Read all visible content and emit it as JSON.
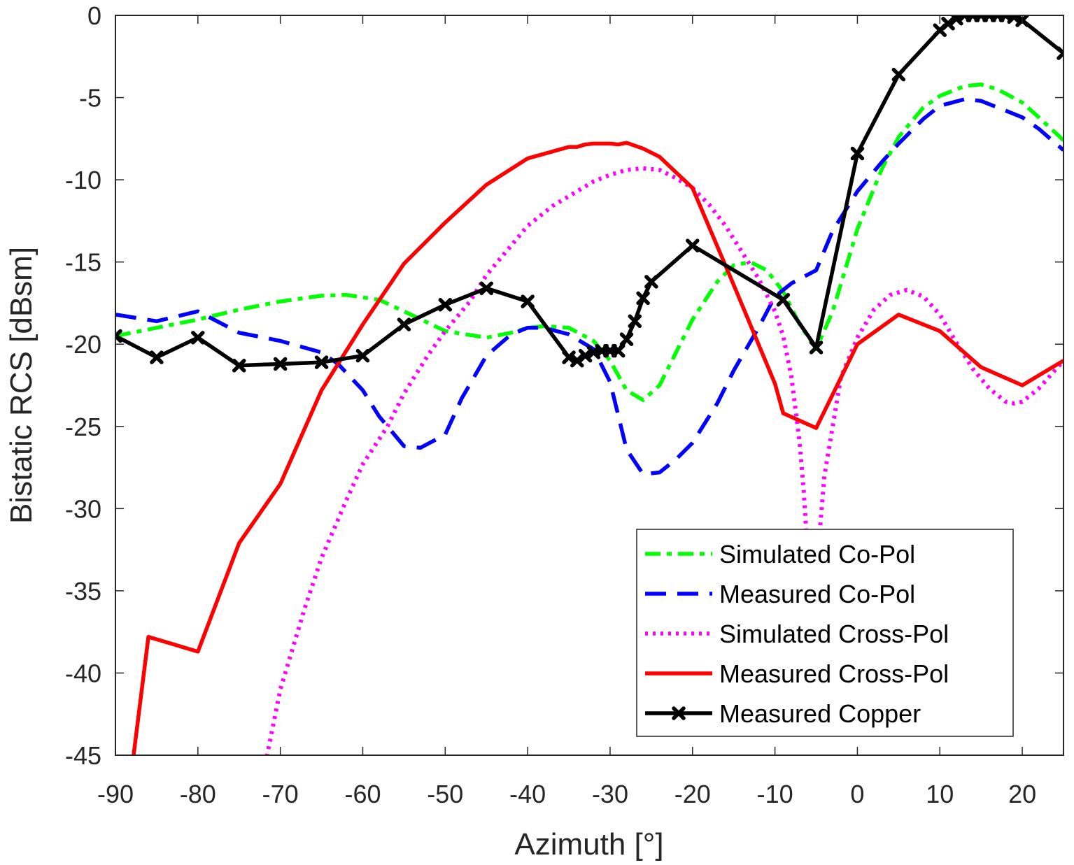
{
  "chart_data": {
    "type": "line",
    "title": "",
    "xlabel": "Azimuth [°]",
    "ylabel": "Bistatic RCS [dBsm]",
    "xlim": [
      -90,
      25
    ],
    "ylim": [
      -45,
      0
    ],
    "xticks": [
      -90,
      -80,
      -70,
      -60,
      -50,
      -40,
      -30,
      -20,
      -10,
      0,
      10,
      20
    ],
    "yticks": [
      0,
      -5,
      -10,
      -15,
      -20,
      -25,
      -30,
      -35,
      -40,
      -45
    ],
    "grid": false,
    "legend_position": "bottom-right",
    "series": [
      {
        "name": "Simulated Co-Pol",
        "color": "#00ff00",
        "dash": "dash-dot",
        "marker": "none",
        "x": [
          -90,
          -85,
          -80,
          -75,
          -70,
          -65,
          -62,
          -58,
          -55,
          -50,
          -45,
          -42,
          -40,
          -38,
          -35,
          -32,
          -30,
          -28,
          -26,
          -24,
          -22,
          -20,
          -17,
          -15,
          -13,
          -11,
          -9,
          -7,
          -5,
          -3,
          0,
          3,
          5,
          8,
          10,
          13,
          15,
          17,
          20,
          22,
          25
        ],
        "y": [
          -19.5,
          -19,
          -18.5,
          -17.9,
          -17.4,
          -17.05,
          -17,
          -17.3,
          -18,
          -19.2,
          -19.6,
          -19.3,
          -19,
          -18.9,
          -19,
          -19.8,
          -21,
          -22.8,
          -23.4,
          -22.5,
          -20.5,
          -18.5,
          -16.2,
          -15.2,
          -15,
          -15.5,
          -16.8,
          -18.8,
          -20.3,
          -18,
          -13,
          -9.3,
          -7.4,
          -5.6,
          -4.9,
          -4.3,
          -4.2,
          -4.5,
          -5.3,
          -6.2,
          -7.6
        ]
      },
      {
        "name": "Measured Co-Pol",
        "color": "#0000ff",
        "dash": "dashed",
        "marker": "none",
        "x": [
          -90,
          -85,
          -80,
          -75,
          -70,
          -65,
          -63,
          -60,
          -58,
          -55,
          -53,
          -50,
          -48,
          -45,
          -42,
          -40,
          -38,
          -35,
          -32,
          -30,
          -28,
          -26,
          -24,
          -22,
          -20,
          -17,
          -15,
          -12,
          -10,
          -8,
          -5,
          -3,
          0,
          3,
          5,
          8,
          10,
          13,
          15,
          18,
          20,
          22,
          25
        ],
        "y": [
          -18.2,
          -18.6,
          -18,
          -19.3,
          -19.8,
          -20.5,
          -21.2,
          -22.8,
          -24.4,
          -26.2,
          -26.3,
          -25.5,
          -23.3,
          -20.7,
          -19.4,
          -19,
          -19,
          -19.4,
          -20.3,
          -22.3,
          -26.4,
          -27.9,
          -27.8,
          -27,
          -26,
          -23.6,
          -21.6,
          -19,
          -17.1,
          -16.3,
          -15.5,
          -13.1,
          -10.7,
          -8.9,
          -7.8,
          -6.3,
          -5.5,
          -5.1,
          -5.2,
          -5.8,
          -6.2,
          -6.9,
          -8.2
        ]
      },
      {
        "name": "Simulated Cross-Pol",
        "color": "#ff00ff",
        "dash": "dotted",
        "marker": "none",
        "x": [
          -72,
          -70,
          -67,
          -65,
          -62,
          -60,
          -57,
          -55,
          -52,
          -50,
          -47,
          -45,
          -42,
          -40,
          -37,
          -35,
          -32,
          -30,
          -28,
          -26,
          -24,
          -22,
          -20,
          -18,
          -16,
          -14,
          -12,
          -10,
          -9,
          -8,
          -7,
          -6.5,
          -6,
          -5.5,
          -5,
          -4.5,
          -4,
          -3,
          -2,
          0,
          2,
          4,
          6,
          8,
          10,
          12,
          14,
          16,
          18,
          19,
          20,
          22,
          25
        ],
        "y": [
          -46,
          -41,
          -36,
          -33,
          -29.5,
          -27.3,
          -25,
          -23,
          -20.6,
          -19.2,
          -17.4,
          -15.8,
          -14,
          -12.8,
          -11.6,
          -11,
          -10.1,
          -9.7,
          -9.4,
          -9.3,
          -9.4,
          -9.9,
          -10.5,
          -11.5,
          -12.8,
          -14.4,
          -16,
          -18,
          -19.5,
          -22,
          -26,
          -29,
          -33,
          -36,
          -34,
          -31,
          -28,
          -25,
          -22,
          -19.6,
          -17.9,
          -17,
          -16.7,
          -17.1,
          -18.2,
          -19.9,
          -21.5,
          -22.7,
          -23.5,
          -23.6,
          -23.5,
          -22.7,
          -21
        ]
      },
      {
        "name": "Measured Cross-Pol",
        "color": "#ff0000",
        "dash": "solid",
        "marker": "none",
        "x": [
          -88,
          -86,
          -80,
          -75,
          -70,
          -65,
          -60,
          -55,
          -50,
          -45,
          -40,
          -35,
          -34,
          -33,
          -32,
          -31,
          -30,
          -29,
          -28,
          -26,
          -24,
          -20,
          -15,
          -10,
          -9,
          -5,
          0,
          5,
          10,
          15,
          20,
          25
        ],
        "y": [
          -45.8,
          -37.8,
          -38.7,
          -32.1,
          -28.5,
          -22.8,
          -18.8,
          -15.1,
          -12.6,
          -10.3,
          -8.7,
          -8,
          -8,
          -7.85,
          -7.8,
          -7.8,
          -7.8,
          -7.85,
          -7.75,
          -8.1,
          -8.6,
          -10.5,
          -16.4,
          -22.4,
          -24.2,
          -25.1,
          -20,
          -18.2,
          -19.2,
          -21.4,
          -22.5,
          -21
        ]
      },
      {
        "name": "Measured Copper",
        "color": "#000000",
        "dash": "solid",
        "marker": "x",
        "x": [
          -90,
          -85,
          -80,
          -75,
          -70,
          -65,
          -60,
          -55,
          -50,
          -45,
          -40,
          -35,
          -34,
          -33,
          -32,
          -31,
          -30,
          -29,
          -28,
          -27,
          -26,
          -25,
          -20,
          -9,
          -5,
          0,
          5,
          10,
          11,
          12,
          13,
          14,
          15,
          16,
          17,
          18,
          19,
          20,
          25
        ],
        "y": [
          -19.5,
          -20.8,
          -19.6,
          -21.3,
          -21.2,
          -21.1,
          -20.7,
          -18.8,
          -17.6,
          -16.6,
          -17.4,
          -20.8,
          -21,
          -20.7,
          -20.5,
          -20.4,
          -20.4,
          -20.4,
          -19.7,
          -18.6,
          -17.2,
          -16.2,
          -14,
          -17.3,
          -20.2,
          -8.4,
          -3.6,
          -0.9,
          -0.5,
          -0.2,
          0,
          0,
          0,
          0,
          0,
          0,
          -0.1,
          -0.3,
          -2.3
        ]
      }
    ]
  }
}
